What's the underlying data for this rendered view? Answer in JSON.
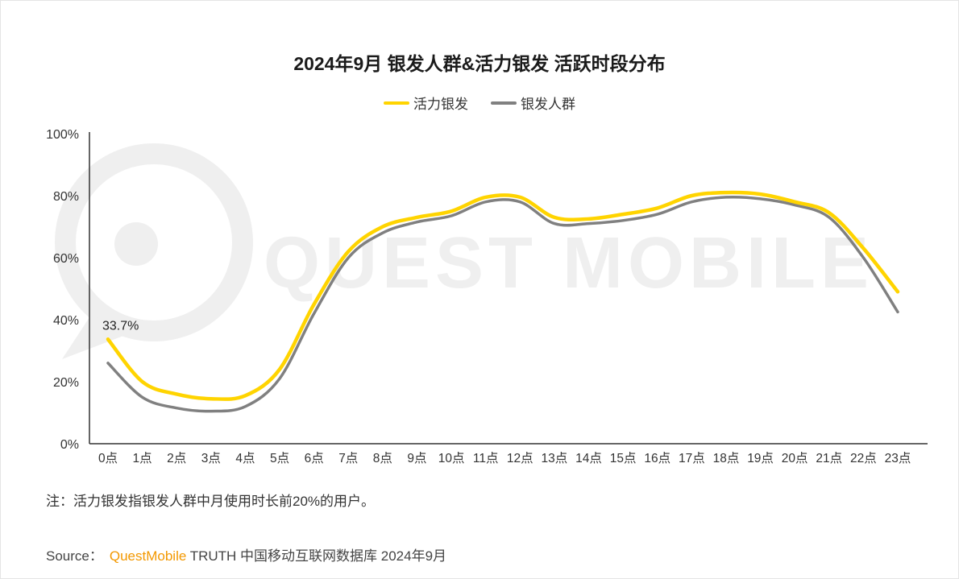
{
  "chart_data": {
    "type": "line",
    "title": "2024年9月 银发人群&活力银发 活跃时段分布",
    "categories": [
      "0点",
      "1点",
      "2点",
      "3点",
      "4点",
      "5点",
      "6点",
      "7点",
      "8点",
      "9点",
      "10点",
      "11点",
      "12点",
      "13点",
      "14点",
      "15点",
      "16点",
      "17点",
      "18点",
      "19点",
      "20点",
      "21点",
      "22点",
      "23点"
    ],
    "series": [
      {
        "name": "活力银发",
        "color": "#FFD400",
        "values": [
          33.7,
          20,
          16,
          14.5,
          15.5,
          24,
          45,
          62,
          70,
          73,
          75,
          79.5,
          79.5,
          73,
          72.5,
          74,
          76,
          80,
          81,
          80.5,
          78,
          74.5,
          63,
          49
        ]
      },
      {
        "name": "银发人群",
        "color": "#808080",
        "values": [
          26,
          15,
          11.5,
          10.5,
          12,
          21,
          42,
          60,
          68,
          71.5,
          73.5,
          78,
          78,
          71,
          71,
          72,
          74,
          78,
          79.5,
          79,
          77,
          73,
          60,
          42.5
        ]
      }
    ],
    "ylim": [
      0,
      100
    ],
    "ytick_labels": [
      "100%",
      "80%",
      "60%",
      "40%",
      "20%",
      "0%"
    ],
    "ytick_values": [
      100,
      80,
      60,
      40,
      20,
      0
    ],
    "xlabel": "",
    "ylabel": "",
    "grid": false,
    "legend_position": "top-center",
    "axis_color": "#333333",
    "annotation": {
      "text": "33.7%",
      "series_index": 0,
      "point_index": 0
    },
    "watermark": {
      "text": "QUEST MOBILE",
      "color": "#efefef"
    }
  },
  "note": "注：活力银发指银发人群中月使用时长前20%的用户。",
  "source": {
    "label": "Source：",
    "brand": "QuestMobile",
    "rest": " TRUTH 中国移动互联网数据库 2024年9月",
    "brand_color": "#F39800"
  }
}
